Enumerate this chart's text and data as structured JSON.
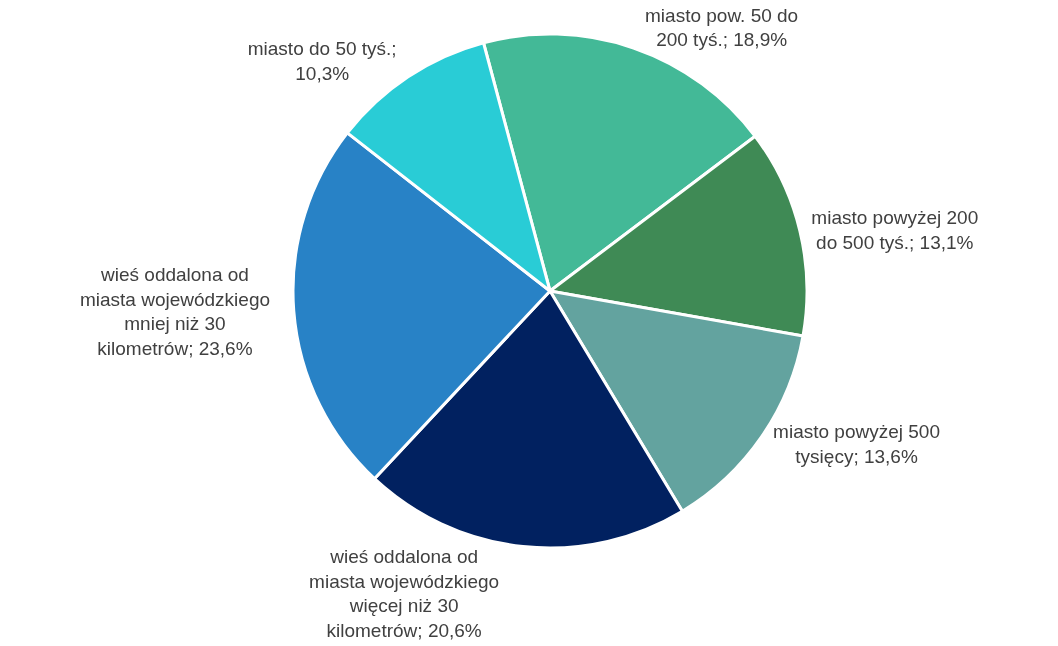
{
  "chart_data": {
    "type": "pie",
    "categories": [
      "miasto pow. 50 do 200 tyś.; 18,9%",
      "miasto powyżej 200 do 500 tyś.; 13,1%",
      "miasto powyżej 500 tysięcy; 13,6%",
      "wieś oddalona od miasta wojewódzkiego więcej niż 30 kilometrów; 20,6%",
      "wieś oddalona od miasta wojewódzkiego mniej niż 30 kilometrów; 23,6%",
      "miasto do 50 tyś.; 10,3%"
    ],
    "values": [
      18.9,
      13.1,
      13.6,
      20.6,
      23.6,
      10.3
    ],
    "colors": [
      "#43b997",
      "#3f8a55",
      "#63a39f",
      "#012160",
      "#2882c6",
      "#29ccd6"
    ],
    "legend": false
  }
}
